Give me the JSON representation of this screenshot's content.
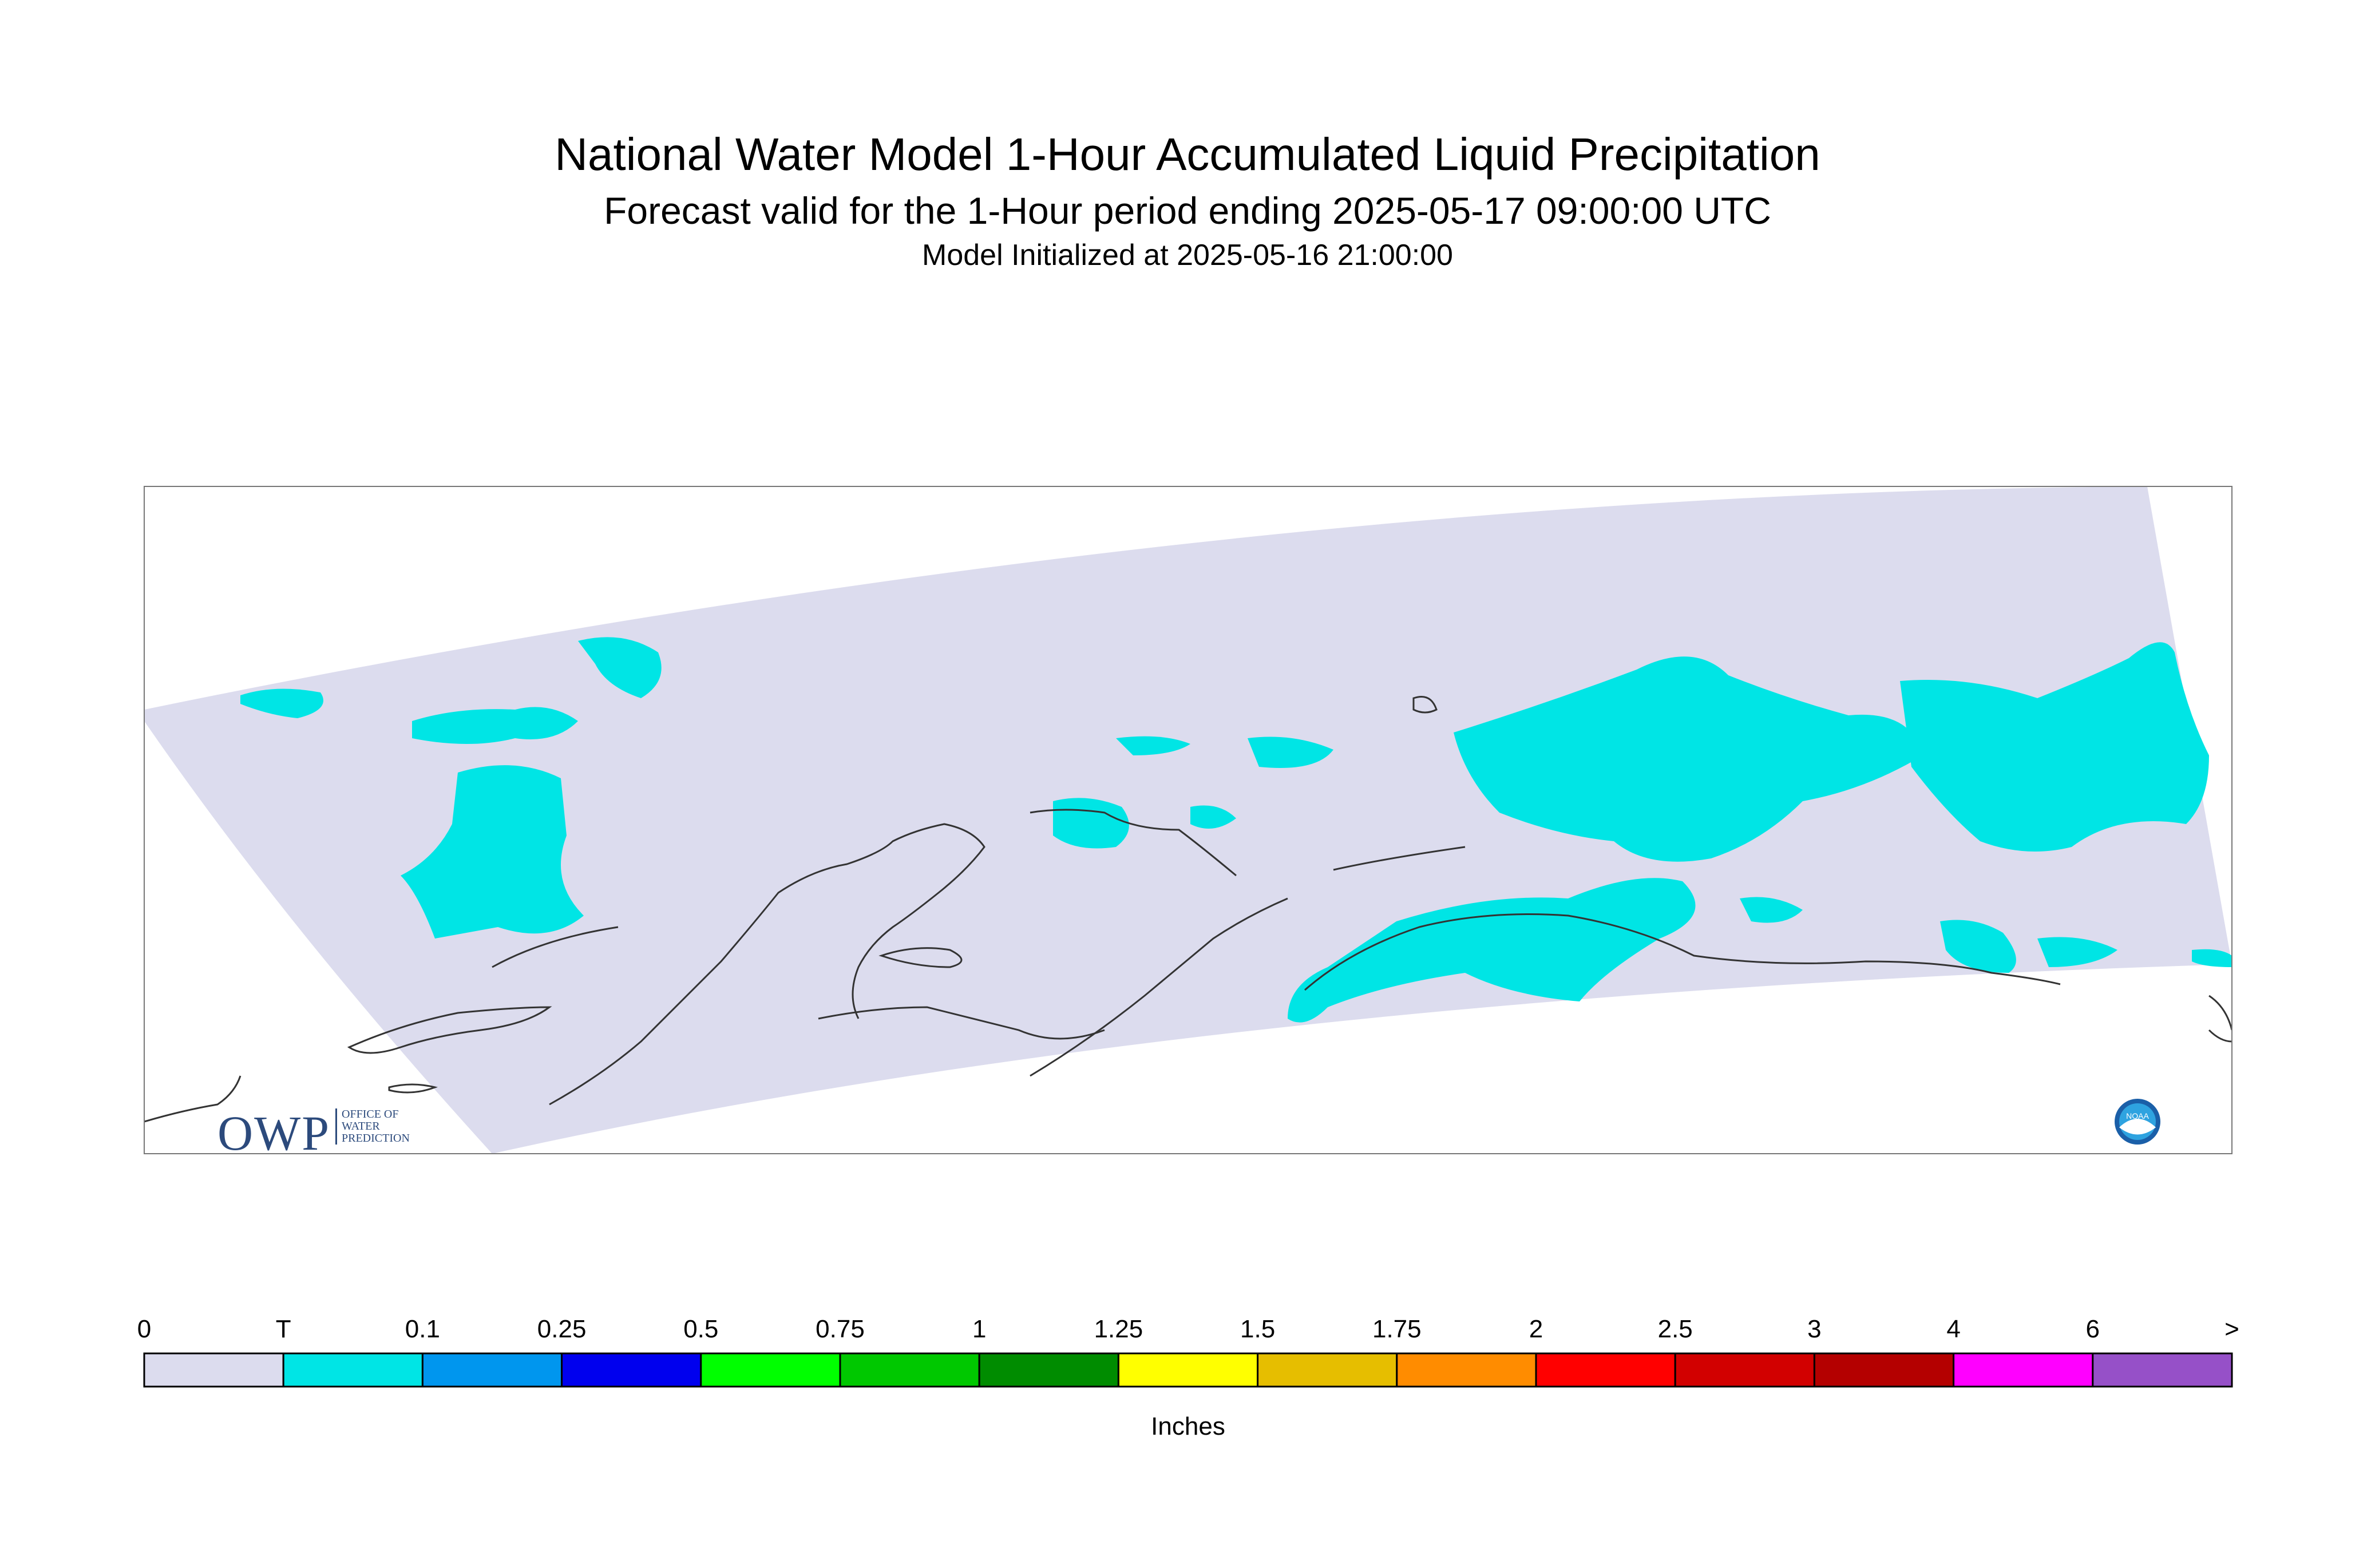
{
  "titles": {
    "main": "National Water Model 1-Hour Accumulated Liquid Precipitation",
    "sub": "Forecast valid for the 1-Hour period ending 2025-05-17 09:00:00 UTC",
    "init": "Model Initialized at 2025-05-16 21:00:00"
  },
  "legend": {
    "units": "Inches",
    "labels": [
      "0",
      "T",
      "0.1",
      "0.25",
      "0.5",
      "0.75",
      "1",
      "1.25",
      "1.5",
      "1.75",
      "2",
      "2.5",
      "3",
      "4",
      "6",
      ">"
    ],
    "colors": [
      "#dcdcee",
      "#00e5e5",
      "#0096ee",
      "#0000ee",
      "#00ff00",
      "#00c800",
      "#008c00",
      "#ffff00",
      "#e6be00",
      "#ff8c00",
      "#ff0000",
      "#d20000",
      "#b40000",
      "#ff00ff",
      "#9650c8"
    ]
  },
  "map": {
    "domain_fill": "#dcdcee",
    "precip_fill": "#00e5e5",
    "coast_color": "#333333"
  },
  "logos": {
    "owp_text": "OWP",
    "owp_sub": [
      "OFFICE OF",
      "WATER",
      "PREDICTION"
    ],
    "noaa_text": "NOAA"
  }
}
